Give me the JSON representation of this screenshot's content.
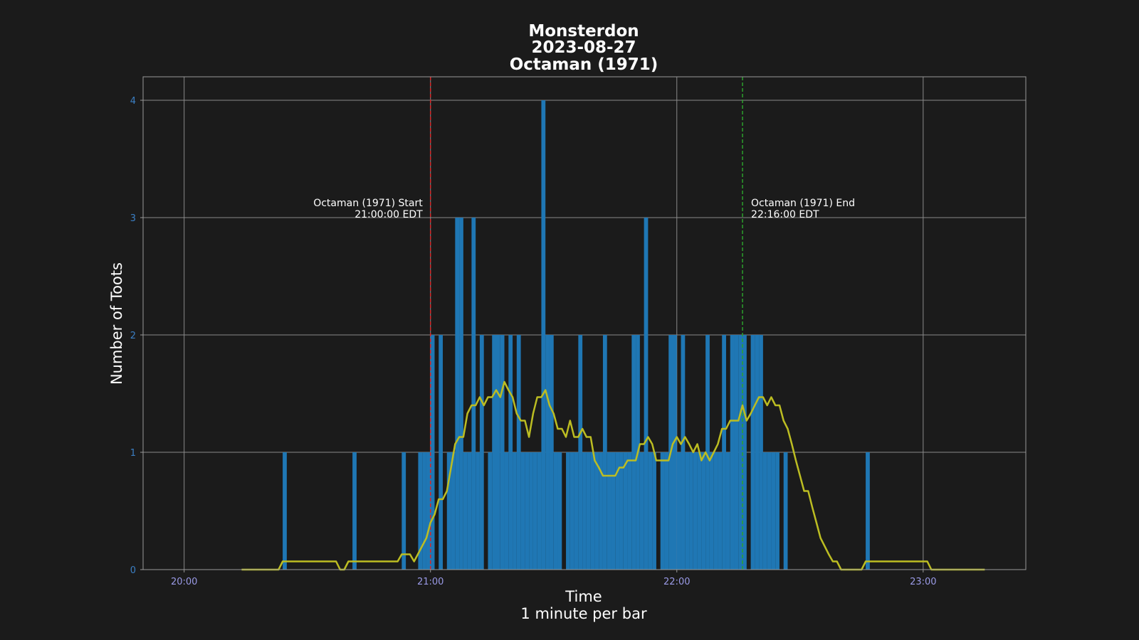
{
  "chart_data": {
    "type": "bar",
    "title_lines": [
      "Monsterdon",
      "2023-08-27",
      "Octaman (1971)"
    ],
    "xlabel_lines": [
      "Time",
      "1 minute per bar"
    ],
    "ylabel": "Number of Toots",
    "x_unit": "time (EDT)",
    "xlim": [
      "19:50",
      "23:25"
    ],
    "ylim": [
      0,
      4.2
    ],
    "x_ticks": [
      "20:00",
      "21:00",
      "22:00",
      "23:00"
    ],
    "y_ticks": [
      0,
      1,
      2,
      3,
      4
    ],
    "grid": true,
    "colors": {
      "background": "#1b1b1b",
      "bar": "#1f77b4",
      "line": "#bcbd22",
      "start_line": "#d62728",
      "end_line": "#2ca02c"
    },
    "bars": [
      [
        "20:24",
        1
      ],
      [
        "20:41",
        1
      ],
      [
        "20:53",
        1
      ],
      [
        "20:57",
        1
      ],
      [
        "20:58",
        1
      ],
      [
        "20:59",
        1
      ],
      [
        "21:00",
        2
      ],
      [
        "21:02",
        2
      ],
      [
        "21:04",
        1
      ],
      [
        "21:05",
        1
      ],
      [
        "21:06",
        3
      ],
      [
        "21:07",
        3
      ],
      [
        "21:08",
        1
      ],
      [
        "21:09",
        1
      ],
      [
        "21:10",
        3
      ],
      [
        "21:11",
        1
      ],
      [
        "21:12",
        2
      ],
      [
        "21:14",
        1
      ],
      [
        "21:15",
        2
      ],
      [
        "21:16",
        2
      ],
      [
        "21:17",
        2
      ],
      [
        "21:18",
        1
      ],
      [
        "21:19",
        2
      ],
      [
        "21:20",
        1
      ],
      [
        "21:21",
        2
      ],
      [
        "21:22",
        1
      ],
      [
        "21:23",
        1
      ],
      [
        "21:24",
        1
      ],
      [
        "21:25",
        1
      ],
      [
        "21:26",
        1
      ],
      [
        "21:27",
        4
      ],
      [
        "21:28",
        2
      ],
      [
        "21:29",
        2
      ],
      [
        "21:30",
        1
      ],
      [
        "21:31",
        1
      ],
      [
        "21:33",
        1
      ],
      [
        "21:34",
        1
      ],
      [
        "21:35",
        1
      ],
      [
        "21:36",
        2
      ],
      [
        "21:37",
        1
      ],
      [
        "21:38",
        1
      ],
      [
        "21:39",
        1
      ],
      [
        "21:40",
        1
      ],
      [
        "21:41",
        1
      ],
      [
        "21:42",
        2
      ],
      [
        "21:43",
        1
      ],
      [
        "21:44",
        1
      ],
      [
        "21:45",
        1
      ],
      [
        "21:46",
        1
      ],
      [
        "21:47",
        1
      ],
      [
        "21:48",
        1
      ],
      [
        "21:49",
        2
      ],
      [
        "21:50",
        2
      ],
      [
        "21:51",
        1
      ],
      [
        "21:52",
        3
      ],
      [
        "21:53",
        1
      ],
      [
        "21:54",
        1
      ],
      [
        "21:56",
        1
      ],
      [
        "21:57",
        1
      ],
      [
        "21:58",
        2
      ],
      [
        "21:59",
        2
      ],
      [
        "22:00",
        1
      ],
      [
        "22:01",
        2
      ],
      [
        "22:02",
        1
      ],
      [
        "22:03",
        1
      ],
      [
        "22:04",
        1
      ],
      [
        "22:05",
        1
      ],
      [
        "22:06",
        1
      ],
      [
        "22:07",
        2
      ],
      [
        "22:08",
        1
      ],
      [
        "22:09",
        1
      ],
      [
        "22:10",
        1
      ],
      [
        "22:11",
        2
      ],
      [
        "22:12",
        1
      ],
      [
        "22:13",
        2
      ],
      [
        "22:14",
        2
      ],
      [
        "22:15",
        2
      ],
      [
        "22:16",
        2
      ],
      [
        "22:18",
        2
      ],
      [
        "22:19",
        2
      ],
      [
        "22:20",
        2
      ],
      [
        "22:21",
        1
      ],
      [
        "22:22",
        1
      ],
      [
        "22:23",
        1
      ],
      [
        "22:24",
        1
      ],
      [
        "22:26",
        1
      ],
      [
        "22:46",
        1
      ]
    ],
    "rolling_avg": [
      [
        "20:14",
        0
      ],
      [
        "20:23",
        0
      ],
      [
        "20:24",
        0.07
      ],
      [
        "20:37",
        0.07
      ],
      [
        "20:38",
        0
      ],
      [
        "20:39",
        0
      ],
      [
        "20:40",
        0.07
      ],
      [
        "20:52",
        0.07
      ],
      [
        "20:53",
        0.13
      ],
      [
        "20:55",
        0.13
      ],
      [
        "20:56",
        0.07
      ],
      [
        "20:59",
        0.27
      ],
      [
        "21:00",
        0.4
      ],
      [
        "21:01",
        0.47
      ],
      [
        "21:02",
        0.6
      ],
      [
        "21:03",
        0.6
      ],
      [
        "21:04",
        0.67
      ],
      [
        "21:05",
        0.87
      ],
      [
        "21:06",
        1.07
      ],
      [
        "21:07",
        1.13
      ],
      [
        "21:08",
        1.13
      ],
      [
        "21:09",
        1.33
      ],
      [
        "21:10",
        1.4
      ],
      [
        "21:11",
        1.4
      ],
      [
        "21:12",
        1.47
      ],
      [
        "21:13",
        1.4
      ],
      [
        "21:14",
        1.47
      ],
      [
        "21:15",
        1.47
      ],
      [
        "21:16",
        1.53
      ],
      [
        "21:17",
        1.47
      ],
      [
        "21:18",
        1.6
      ],
      [
        "21:19",
        1.53
      ],
      [
        "21:20",
        1.47
      ],
      [
        "21:21",
        1.33
      ],
      [
        "21:22",
        1.27
      ],
      [
        "21:23",
        1.27
      ],
      [
        "21:24",
        1.13
      ],
      [
        "21:25",
        1.33
      ],
      [
        "21:26",
        1.47
      ],
      [
        "21:27",
        1.47
      ],
      [
        "21:28",
        1.53
      ],
      [
        "21:29",
        1.4
      ],
      [
        "21:30",
        1.33
      ],
      [
        "21:31",
        1.2
      ],
      [
        "21:32",
        1.2
      ],
      [
        "21:33",
        1.13
      ],
      [
        "21:34",
        1.27
      ],
      [
        "21:35",
        1.13
      ],
      [
        "21:36",
        1.13
      ],
      [
        "21:37",
        1.2
      ],
      [
        "21:38",
        1.13
      ],
      [
        "21:39",
        1.13
      ],
      [
        "21:40",
        0.93
      ],
      [
        "21:41",
        0.87
      ],
      [
        "21:42",
        0.8
      ],
      [
        "21:44",
        0.8
      ],
      [
        "21:45",
        0.8
      ],
      [
        "21:46",
        0.87
      ],
      [
        "21:47",
        0.87
      ],
      [
        "21:48",
        0.93
      ],
      [
        "21:50",
        0.93
      ],
      [
        "21:51",
        1.07
      ],
      [
        "21:52",
        1.07
      ],
      [
        "21:53",
        1.13
      ],
      [
        "21:54",
        1.07
      ],
      [
        "21:55",
        0.93
      ],
      [
        "21:58",
        0.93
      ],
      [
        "21:59",
        1.07
      ],
      [
        "22:00",
        1.13
      ],
      [
        "22:01",
        1.07
      ],
      [
        "22:02",
        1.13
      ],
      [
        "22:03",
        1.07
      ],
      [
        "22:04",
        1.0
      ],
      [
        "22:05",
        1.07
      ],
      [
        "22:06",
        0.93
      ],
      [
        "22:07",
        1.0
      ],
      [
        "22:08",
        0.93
      ],
      [
        "22:09",
        1.0
      ],
      [
        "22:10",
        1.07
      ],
      [
        "22:11",
        1.2
      ],
      [
        "22:12",
        1.2
      ],
      [
        "22:13",
        1.27
      ],
      [
        "22:15",
        1.27
      ],
      [
        "22:16",
        1.4
      ],
      [
        "22:17",
        1.27
      ],
      [
        "22:18",
        1.33
      ],
      [
        "22:19",
        1.4
      ],
      [
        "22:20",
        1.47
      ],
      [
        "22:21",
        1.47
      ],
      [
        "22:22",
        1.4
      ],
      [
        "22:23",
        1.47
      ],
      [
        "22:24",
        1.4
      ],
      [
        "22:25",
        1.4
      ],
      [
        "22:26",
        1.27
      ],
      [
        "22:27",
        1.2
      ],
      [
        "22:28",
        1.07
      ],
      [
        "22:29",
        0.93
      ],
      [
        "22:30",
        0.8
      ],
      [
        "22:31",
        0.67
      ],
      [
        "22:32",
        0.67
      ],
      [
        "22:33",
        0.53
      ],
      [
        "22:34",
        0.4
      ],
      [
        "22:35",
        0.27
      ],
      [
        "22:37",
        0.13
      ],
      [
        "22:38",
        0.07
      ],
      [
        "22:39",
        0.07
      ],
      [
        "22:40",
        0
      ],
      [
        "22:45",
        0
      ],
      [
        "22:46",
        0.07
      ],
      [
        "23:01",
        0.07
      ],
      [
        "23:02",
        0
      ],
      [
        "23:15",
        0
      ]
    ],
    "annotations": [
      {
        "name": "start",
        "x": "21:00",
        "lines": [
          "Octaman (1971) Start",
          "21:00:00 EDT"
        ],
        "align": "right"
      },
      {
        "name": "end",
        "x": "22:16",
        "lines": [
          "Octaman (1971) End",
          "22:16:00 EDT"
        ],
        "align": "left"
      }
    ]
  }
}
